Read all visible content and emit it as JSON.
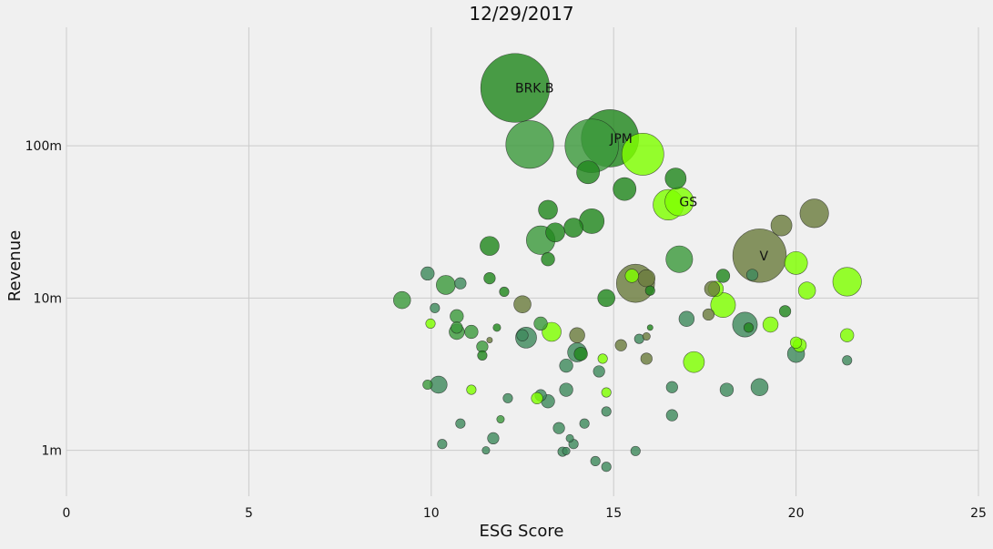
{
  "chart_data": {
    "type": "scatter",
    "title": "12/29/2017",
    "xlabel": "ESG Score",
    "ylabel": "Revenue",
    "xlim": [
      0,
      25
    ],
    "ylim": [
      500000,
      600000000
    ],
    "yscale": "log",
    "grid": true,
    "x_ticks": [
      {
        "value": 0,
        "label": "0"
      },
      {
        "value": 5,
        "label": "5"
      },
      {
        "value": 10,
        "label": "10"
      },
      {
        "value": 15,
        "label": "15"
      },
      {
        "value": 20,
        "label": "20"
      },
      {
        "value": 25,
        "label": "25"
      }
    ],
    "y_ticks": [
      {
        "value": 1000000,
        "label": "1m"
      },
      {
        "value": 10000000,
        "label": "10m"
      },
      {
        "value": 100000000,
        "label": "100m"
      }
    ],
    "bubble_size_meaning": "relative market size (unitless estimate)",
    "colors": {
      "background": "#f0f0f0",
      "grid": "#cbcbcb",
      "dark_green": "#22881f",
      "mid_green": "#3d9a3d",
      "teal_green": "#3f8a5d",
      "olive": "#6b7c3e",
      "lime": "#7fff00",
      "edge": "#1a1a1a"
    },
    "points": [
      {
        "x": 12.3,
        "y": 240000000,
        "size": 36,
        "color": "#22881f",
        "label": "BRK.B"
      },
      {
        "x": 12.7,
        "y": 102000000,
        "size": 25,
        "color": "#3d9a3d"
      },
      {
        "x": 14.4,
        "y": 100000000,
        "size": 28,
        "color": "#3d9a3d"
      },
      {
        "x": 14.9,
        "y": 112000000,
        "size": 30,
        "color": "#22881f",
        "label": "JPM"
      },
      {
        "x": 15.8,
        "y": 88000000,
        "size": 22,
        "color": "#7fff00"
      },
      {
        "x": 14.3,
        "y": 67000000,
        "size": 12,
        "color": "#22881f"
      },
      {
        "x": 16.7,
        "y": 61000000,
        "size": 11,
        "color": "#22881f"
      },
      {
        "x": 15.3,
        "y": 52000000,
        "size": 12,
        "color": "#22881f"
      },
      {
        "x": 16.5,
        "y": 41000000,
        "size": 16,
        "color": "#7fff00"
      },
      {
        "x": 16.8,
        "y": 43000000,
        "size": 15,
        "color": "#7fff00",
        "label": "GS"
      },
      {
        "x": 20.5,
        "y": 36000000,
        "size": 15,
        "color": "#6b7c3e"
      },
      {
        "x": 13.2,
        "y": 38000000,
        "size": 10,
        "color": "#22881f"
      },
      {
        "x": 14.4,
        "y": 32000000,
        "size": 13,
        "color": "#22881f"
      },
      {
        "x": 19.6,
        "y": 30000000,
        "size": 11,
        "color": "#6b7c3e"
      },
      {
        "x": 13.9,
        "y": 29000000,
        "size": 10,
        "color": "#22881f"
      },
      {
        "x": 13.4,
        "y": 27000000,
        "size": 10,
        "color": "#22881f"
      },
      {
        "x": 13.0,
        "y": 24000000,
        "size": 15,
        "color": "#3d9a3d"
      },
      {
        "x": 11.6,
        "y": 22000000,
        "size": 10,
        "color": "#22881f"
      },
      {
        "x": 19.0,
        "y": 19000000,
        "size": 28,
        "color": "#6b7c3e",
        "label": "V"
      },
      {
        "x": 16.8,
        "y": 18000000,
        "size": 14,
        "color": "#3d9a3d"
      },
      {
        "x": 13.2,
        "y": 18000000,
        "size": 7,
        "color": "#22881f"
      },
      {
        "x": 20.0,
        "y": 17000000,
        "size": 12,
        "color": "#7fff00"
      },
      {
        "x": 9.9,
        "y": 14500000,
        "size": 7,
        "color": "#3f8a5d"
      },
      {
        "x": 15.5,
        "y": 14000000,
        "size": 7,
        "color": "#7fff00"
      },
      {
        "x": 18.0,
        "y": 14000000,
        "size": 7,
        "color": "#22881f"
      },
      {
        "x": 18.8,
        "y": 14200000,
        "size": 6,
        "color": "#3f8a5d"
      },
      {
        "x": 15.9,
        "y": 13500000,
        "size": 9,
        "color": "#6b7c3e"
      },
      {
        "x": 11.6,
        "y": 13500000,
        "size": 6,
        "color": "#22881f"
      },
      {
        "x": 15.6,
        "y": 12500000,
        "size": 20,
        "color": "#6b7c3e"
      },
      {
        "x": 21.4,
        "y": 12800000,
        "size": 15,
        "color": "#7fff00"
      },
      {
        "x": 10.4,
        "y": 12200000,
        "size": 10,
        "color": "#3d9a3d"
      },
      {
        "x": 10.8,
        "y": 12500000,
        "size": 6,
        "color": "#3f8a5d"
      },
      {
        "x": 17.8,
        "y": 11500000,
        "size": 8,
        "color": "#7fff00"
      },
      {
        "x": 17.7,
        "y": 11500000,
        "size": 8,
        "color": "#6b7c3e"
      },
      {
        "x": 20.3,
        "y": 11200000,
        "size": 9,
        "color": "#7fff00"
      },
      {
        "x": 12.0,
        "y": 11000000,
        "size": 5,
        "color": "#22881f"
      },
      {
        "x": 16.0,
        "y": 11200000,
        "size": 5,
        "color": "#22881f"
      },
      {
        "x": 14.8,
        "y": 10000000,
        "size": 9,
        "color": "#22881f"
      },
      {
        "x": 9.2,
        "y": 9700000,
        "size": 9,
        "color": "#3d9a3d"
      },
      {
        "x": 12.5,
        "y": 9100000,
        "size": 9,
        "color": "#6b7c3e"
      },
      {
        "x": 18.0,
        "y": 9000000,
        "size": 13,
        "color": "#7fff00"
      },
      {
        "x": 10.1,
        "y": 8600000,
        "size": 5,
        "color": "#3f8a5d"
      },
      {
        "x": 19.7,
        "y": 8200000,
        "size": 6,
        "color": "#22881f"
      },
      {
        "x": 17.6,
        "y": 7800000,
        "size": 6,
        "color": "#6b7c3e"
      },
      {
        "x": 10.7,
        "y": 7600000,
        "size": 7,
        "color": "#3d9a3d"
      },
      {
        "x": 17.0,
        "y": 7300000,
        "size": 8,
        "color": "#3f8a5d"
      },
      {
        "x": 13.0,
        "y": 6800000,
        "size": 7,
        "color": "#3d9a3d"
      },
      {
        "x": 9.98,
        "y": 6800000,
        "size": 5,
        "color": "#7fff00"
      },
      {
        "x": 18.6,
        "y": 6700000,
        "size": 13,
        "color": "#3f8a5d"
      },
      {
        "x": 19.3,
        "y": 6700000,
        "size": 8,
        "color": "#7fff00"
      },
      {
        "x": 18.7,
        "y": 6400000,
        "size": 5,
        "color": "#22881f"
      },
      {
        "x": 10.7,
        "y": 6400000,
        "size": 6,
        "color": "#3d9a3d"
      },
      {
        "x": 11.8,
        "y": 6400000,
        "size": 4,
        "color": "#22881f"
      },
      {
        "x": 16.0,
        "y": 6400000,
        "size": 3,
        "color": "#22881f"
      },
      {
        "x": 10.7,
        "y": 6000000,
        "size": 8,
        "color": "#3d9a3d"
      },
      {
        "x": 11.1,
        "y": 6000000,
        "size": 7,
        "color": "#3d9a3d"
      },
      {
        "x": 13.3,
        "y": 6000000,
        "size": 10,
        "color": "#7fff00"
      },
      {
        "x": 12.5,
        "y": 5700000,
        "size": 6,
        "color": "#3f8a5d"
      },
      {
        "x": 14.0,
        "y": 5700000,
        "size": 8,
        "color": "#6b7c3e"
      },
      {
        "x": 21.4,
        "y": 5700000,
        "size": 7,
        "color": "#7fff00"
      },
      {
        "x": 12.6,
        "y": 5500000,
        "size": 11,
        "color": "#3f8a5d"
      },
      {
        "x": 15.9,
        "y": 5600000,
        "size": 4,
        "color": "#6b7c3e"
      },
      {
        "x": 15.7,
        "y": 5400000,
        "size": 5,
        "color": "#3f8a5d"
      },
      {
        "x": 11.6,
        "y": 5300000,
        "size": 3,
        "color": "#6b7c3e"
      },
      {
        "x": 20.0,
        "y": 5100000,
        "size": 6,
        "color": "#7fff00"
      },
      {
        "x": 15.2,
        "y": 4900000,
        "size": 6,
        "color": "#6b7c3e"
      },
      {
        "x": 20.1,
        "y": 4900000,
        "size": 7,
        "color": "#7fff00"
      },
      {
        "x": 11.4,
        "y": 4800000,
        "size": 6,
        "color": "#3d9a3d"
      },
      {
        "x": 14.0,
        "y": 4400000,
        "size": 10,
        "color": "#3f8a5d"
      },
      {
        "x": 14.1,
        "y": 4300000,
        "size": 7,
        "color": "#22881f"
      },
      {
        "x": 20.0,
        "y": 4300000,
        "size": 9,
        "color": "#3f8a5d"
      },
      {
        "x": 11.4,
        "y": 4200000,
        "size": 5,
        "color": "#22881f"
      },
      {
        "x": 14.7,
        "y": 4000000,
        "size": 5,
        "color": "#7fff00"
      },
      {
        "x": 15.9,
        "y": 4000000,
        "size": 6,
        "color": "#6b7c3e"
      },
      {
        "x": 21.4,
        "y": 3900000,
        "size": 5,
        "color": "#3f8a5d"
      },
      {
        "x": 17.2,
        "y": 3800000,
        "size": 11,
        "color": "#7fff00"
      },
      {
        "x": 13.7,
        "y": 3600000,
        "size": 7,
        "color": "#3f8a5d"
      },
      {
        "x": 14.6,
        "y": 3300000,
        "size": 6,
        "color": "#3f8a5d"
      },
      {
        "x": 9.9,
        "y": 2700000,
        "size": 5,
        "color": "#3d9a3d"
      },
      {
        "x": 10.2,
        "y": 2700000,
        "size": 9,
        "color": "#3f8a5d"
      },
      {
        "x": 16.6,
        "y": 2600000,
        "size": 6,
        "color": "#3f8a5d"
      },
      {
        "x": 19.0,
        "y": 2600000,
        "size": 9,
        "color": "#3f8a5d"
      },
      {
        "x": 11.1,
        "y": 2500000,
        "size": 5,
        "color": "#7fff00"
      },
      {
        "x": 13.7,
        "y": 2500000,
        "size": 7,
        "color": "#3f8a5d"
      },
      {
        "x": 18.1,
        "y": 2500000,
        "size": 7,
        "color": "#3f8a5d"
      },
      {
        "x": 14.8,
        "y": 2400000,
        "size": 5,
        "color": "#7fff00"
      },
      {
        "x": 13.0,
        "y": 2300000,
        "size": 6,
        "color": "#3f8a5d"
      },
      {
        "x": 12.9,
        "y": 2200000,
        "size": 6,
        "color": "#7fff00"
      },
      {
        "x": 12.1,
        "y": 2200000,
        "size": 5,
        "color": "#3f8a5d"
      },
      {
        "x": 13.2,
        "y": 2100000,
        "size": 7,
        "color": "#3f8a5d"
      },
      {
        "x": 14.8,
        "y": 1800000,
        "size": 5,
        "color": "#3f8a5d"
      },
      {
        "x": 16.6,
        "y": 1700000,
        "size": 6,
        "color": "#3f8a5d"
      },
      {
        "x": 11.9,
        "y": 1600000,
        "size": 4,
        "color": "#3d9a3d"
      },
      {
        "x": 14.2,
        "y": 1500000,
        "size": 5,
        "color": "#3f8a5d"
      },
      {
        "x": 10.8,
        "y": 1500000,
        "size": 5,
        "color": "#3f8a5d"
      },
      {
        "x": 13.5,
        "y": 1400000,
        "size": 6,
        "color": "#3f8a5d"
      },
      {
        "x": 11.7,
        "y": 1200000,
        "size": 6,
        "color": "#3f8a5d"
      },
      {
        "x": 13.8,
        "y": 1200000,
        "size": 4,
        "color": "#3f8a5d"
      },
      {
        "x": 13.9,
        "y": 1100000,
        "size": 5,
        "color": "#3f8a5d"
      },
      {
        "x": 10.3,
        "y": 1100000,
        "size": 5,
        "color": "#3f8a5d"
      },
      {
        "x": 11.5,
        "y": 1000000,
        "size": 4,
        "color": "#3f8a5d"
      },
      {
        "x": 13.6,
        "y": 980000,
        "size": 5,
        "color": "#3f8a5d"
      },
      {
        "x": 13.7,
        "y": 990000,
        "size": 4,
        "color": "#3f8a5d"
      },
      {
        "x": 15.6,
        "y": 990000,
        "size": 5,
        "color": "#3f8a5d"
      },
      {
        "x": 14.5,
        "y": 850000,
        "size": 5,
        "color": "#3f8a5d"
      },
      {
        "x": 14.8,
        "y": 780000,
        "size": 5,
        "color": "#3f8a5d"
      }
    ]
  }
}
